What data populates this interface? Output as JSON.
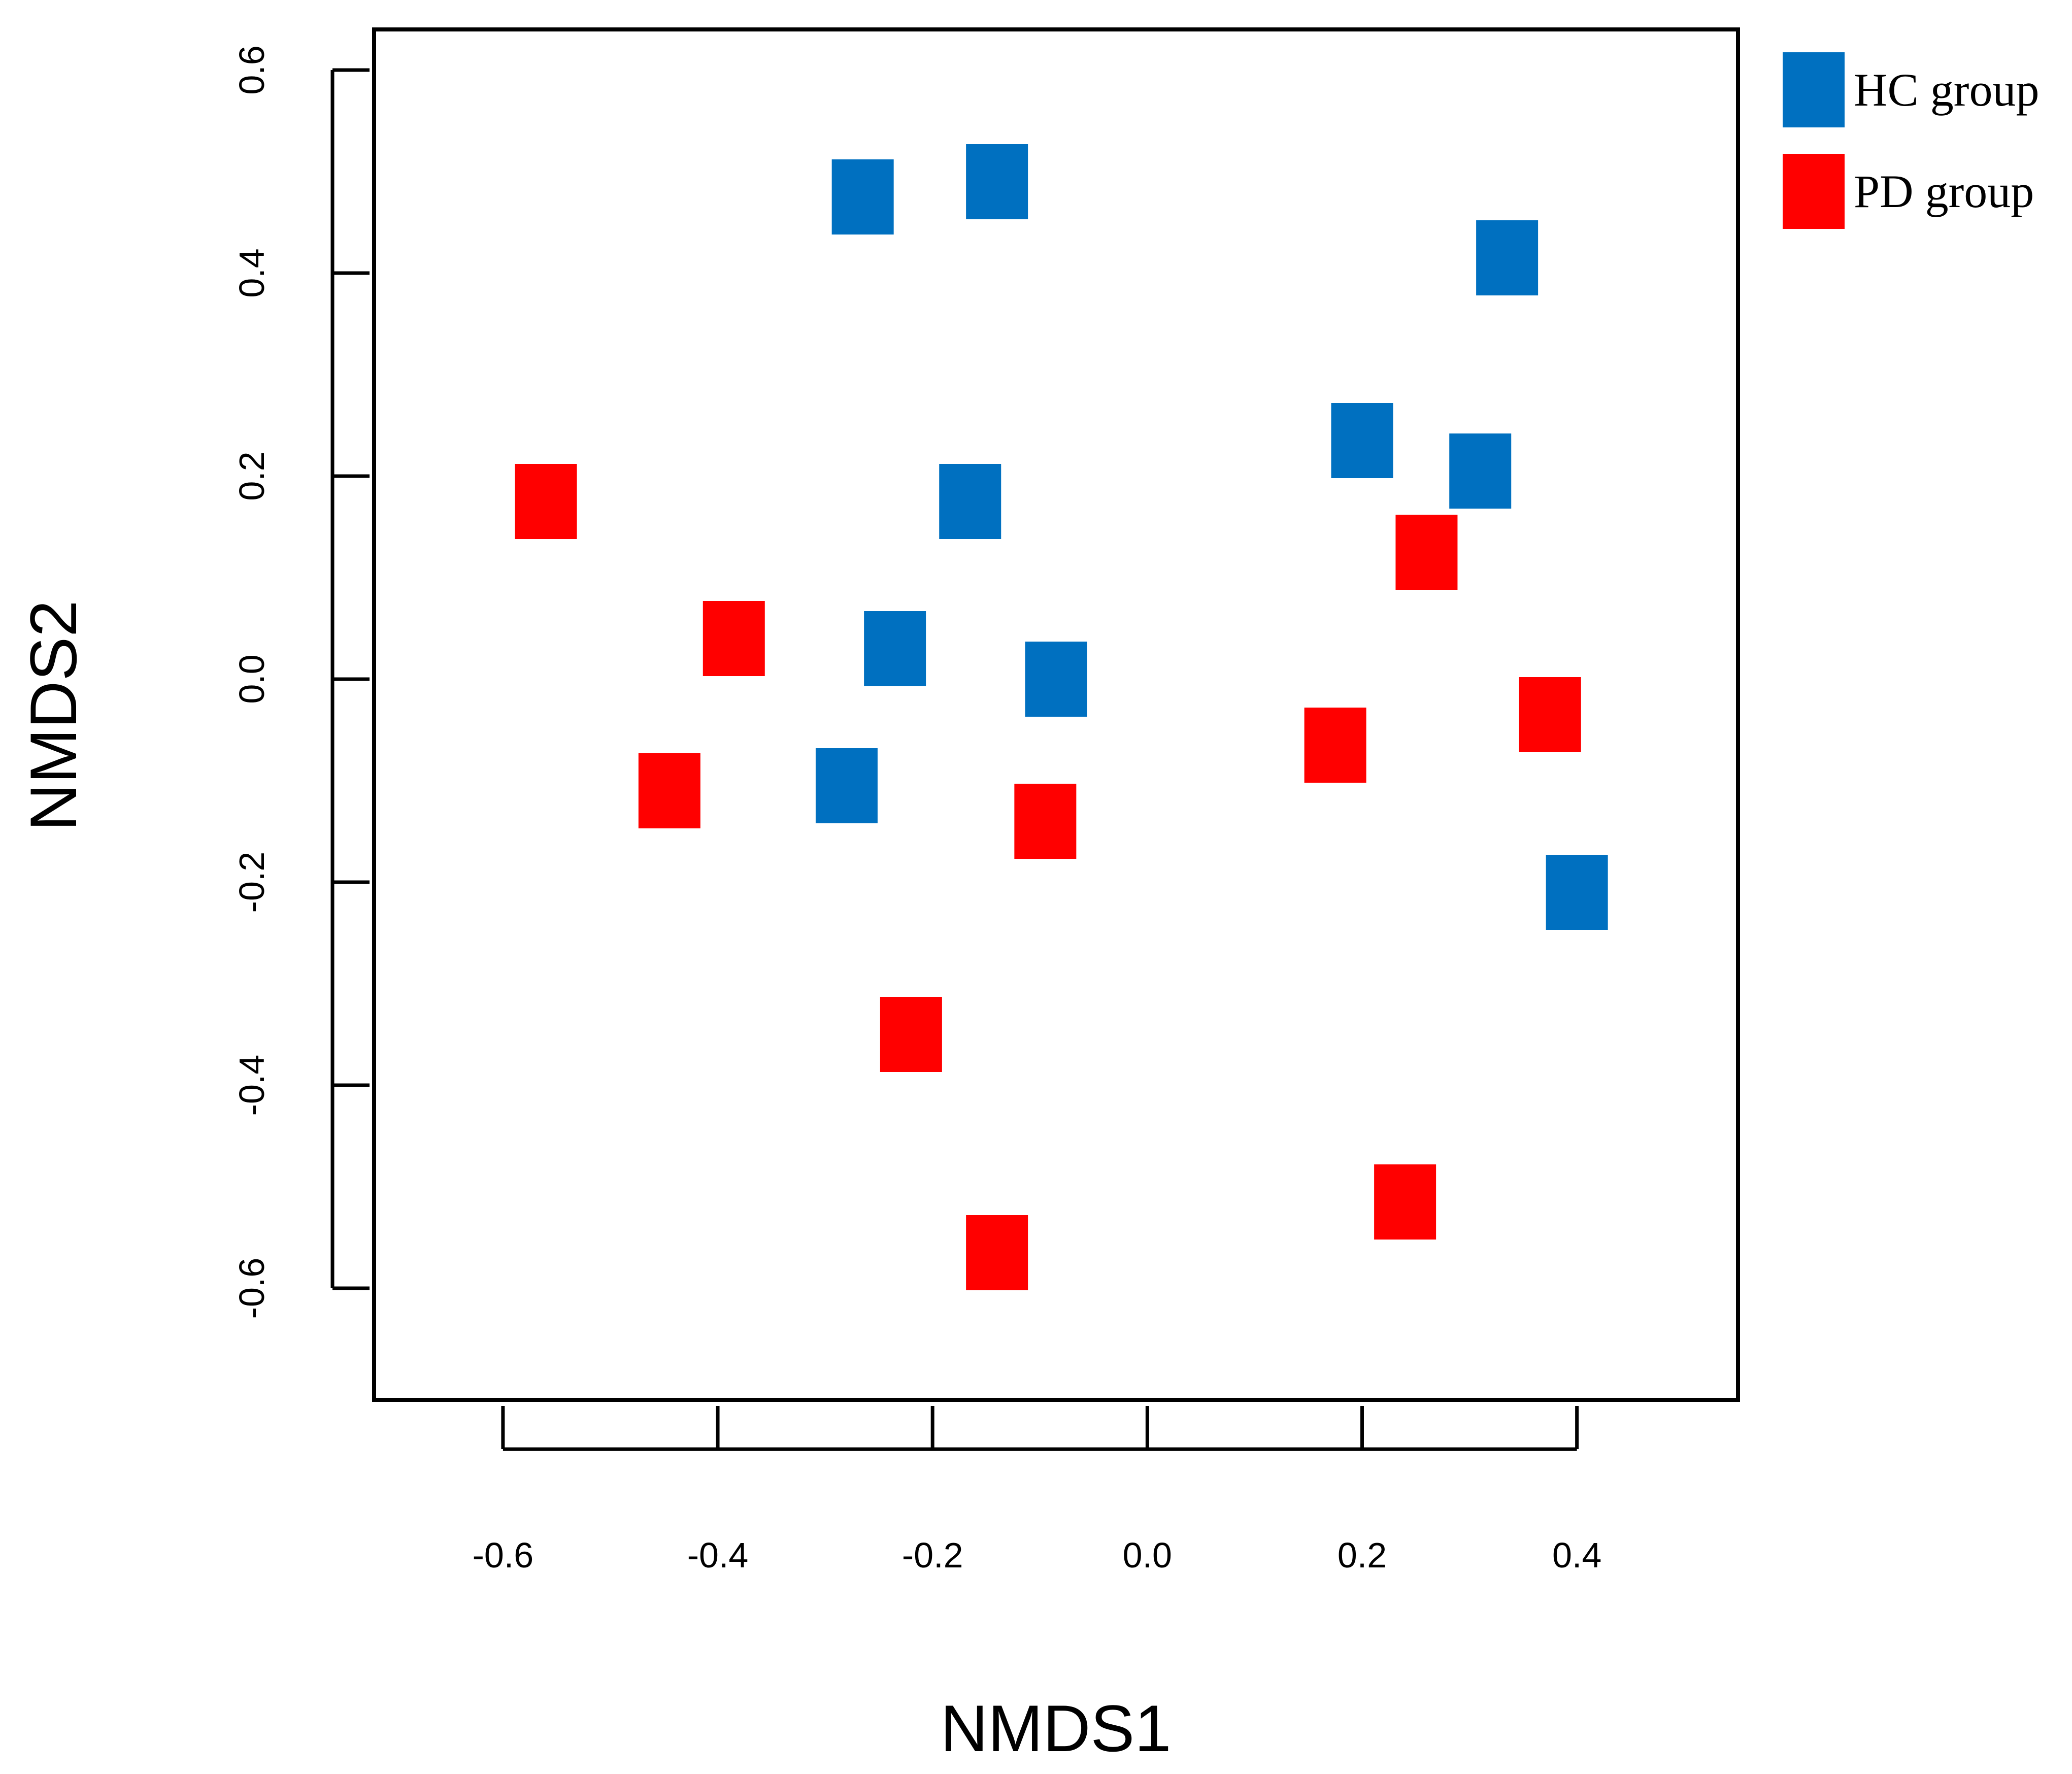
{
  "chart_data": {
    "type": "scatter",
    "xlabel": "NMDS1",
    "ylabel": "NMDS2",
    "xlim": [
      -0.72,
      0.55
    ],
    "ylim": [
      -0.71,
      0.64
    ],
    "x_ticks": [
      "-0.6",
      "-0.4",
      "-0.2",
      "0.0",
      "0.2",
      "0.4"
    ],
    "y_ticks": [
      "-0.6",
      "-0.4",
      "-0.2",
      "0.0",
      "0.2",
      "0.4",
      "0.6"
    ],
    "legend_position": "top-right outside plot",
    "series": [
      {
        "name": "HC group",
        "color": "#0070c0",
        "points": [
          {
            "x": -0.265,
            "y": 0.475
          },
          {
            "x": -0.14,
            "y": 0.49
          },
          {
            "x": 0.335,
            "y": 0.415
          },
          {
            "x": 0.2,
            "y": 0.235
          },
          {
            "x": 0.31,
            "y": 0.205
          },
          {
            "x": -0.165,
            "y": 0.175
          },
          {
            "x": -0.235,
            "y": 0.03
          },
          {
            "x": -0.085,
            "y": 0.0
          },
          {
            "x": -0.28,
            "y": -0.105
          },
          {
            "x": 0.4,
            "y": -0.21
          }
        ]
      },
      {
        "name": "PD group",
        "color": "#ff0000",
        "points": [
          {
            "x": -0.56,
            "y": 0.175
          },
          {
            "x": -0.385,
            "y": 0.04
          },
          {
            "x": 0.26,
            "y": 0.125
          },
          {
            "x": 0.375,
            "y": -0.035
          },
          {
            "x": 0.175,
            "y": -0.065
          },
          {
            "x": -0.445,
            "y": -0.11
          },
          {
            "x": -0.095,
            "y": -0.14
          },
          {
            "x": -0.22,
            "y": -0.35
          },
          {
            "x": 0.24,
            "y": -0.515
          },
          {
            "x": -0.14,
            "y": -0.565
          }
        ]
      }
    ]
  }
}
